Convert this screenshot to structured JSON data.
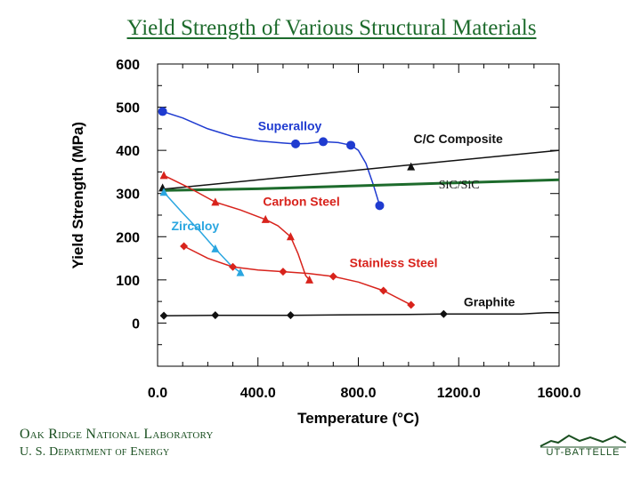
{
  "slide": {
    "title": "Yield Strength of Various Structural Materials",
    "org_line1": "Oak Ridge National Laboratory",
    "org_line2": "U. S. Department of Energy",
    "logo_text": "UT-BATTELLE"
  },
  "colors": {
    "title": "#1d6b2c",
    "superalloy": "#1f3bd0",
    "carbon_steel": "#d8231c",
    "stainless_steel": "#d8231c",
    "zircaloy": "#2aa6e0",
    "cc_composite": "#111111",
    "sic_sic": "#1d6b2c",
    "graphite": "#111111"
  },
  "chart_data": {
    "type": "line",
    "title": "",
    "xlabel": "Temperature (°C)",
    "ylabel": "Yield Strength (MPa)",
    "xlim": [
      0,
      1600
    ],
    "ylim": [
      -100,
      600
    ],
    "xticks": [
      0,
      400,
      800,
      1200,
      1600
    ],
    "xtick_labels": [
      "0.0",
      "400.0",
      "800.0",
      "1200.0",
      "1600.0"
    ],
    "yticks": [
      0,
      100,
      200,
      300,
      400,
      500,
      600
    ],
    "ytick_labels": [
      "0",
      "100",
      "200",
      "300",
      "400",
      "500",
      "600"
    ],
    "series": [
      {
        "name": "Superalloy",
        "marker": "circle",
        "color_key": "superalloy",
        "curve": [
          [
            20,
            490
          ],
          [
            100,
            475
          ],
          [
            200,
            450
          ],
          [
            300,
            432
          ],
          [
            400,
            422
          ],
          [
            500,
            417
          ],
          [
            550,
            415
          ],
          [
            600,
            416
          ],
          [
            660,
            420
          ],
          [
            720,
            418
          ],
          [
            770,
            412
          ],
          [
            800,
            400
          ],
          [
            830,
            370
          ],
          [
            860,
            320
          ],
          [
            885,
            272
          ]
        ],
        "points": [
          [
            20,
            490
          ],
          [
            550,
            415
          ],
          [
            660,
            420
          ],
          [
            770,
            412
          ],
          [
            885,
            272
          ]
        ]
      },
      {
        "name": "C/C Composite",
        "marker": "triangle",
        "color_key": "cc_composite",
        "curve": [
          [
            20,
            310
          ],
          [
            1600,
            400
          ]
        ],
        "points": [
          [
            20,
            313
          ],
          [
            1010,
            362
          ]
        ]
      },
      {
        "name": "SiC/SiC",
        "marker": "none",
        "color_key": "sic_sic",
        "curve": [
          [
            20,
            307
          ],
          [
            400,
            311
          ],
          [
            800,
            318
          ],
          [
            1200,
            325
          ],
          [
            1600,
            332
          ]
        ],
        "points": []
      },
      {
        "name": "Carbon Steel",
        "marker": "triangle",
        "color_key": "carbon_steel",
        "curve": [
          [
            25,
            342
          ],
          [
            120,
            315
          ],
          [
            230,
            280
          ],
          [
            330,
            262
          ],
          [
            430,
            240
          ],
          [
            480,
            225
          ],
          [
            530,
            200
          ],
          [
            560,
            160
          ],
          [
            590,
            110
          ],
          [
            605,
            100
          ]
        ],
        "points": [
          [
            25,
            342
          ],
          [
            230,
            280
          ],
          [
            430,
            240
          ],
          [
            530,
            200
          ],
          [
            605,
            100
          ]
        ]
      },
      {
        "name": "Zircaloy",
        "marker": "triangle",
        "color_key": "zircaloy",
        "curve": [
          [
            25,
            303
          ],
          [
            100,
            255
          ],
          [
            170,
            212
          ],
          [
            230,
            172
          ],
          [
            290,
            135
          ],
          [
            330,
            117
          ]
        ],
        "points": [
          [
            25,
            303
          ],
          [
            230,
            172
          ],
          [
            330,
            117
          ]
        ]
      },
      {
        "name": "Stainless Steel",
        "marker": "diamond",
        "color_key": "stainless_steel",
        "curve": [
          [
            105,
            178
          ],
          [
            200,
            150
          ],
          [
            300,
            130
          ],
          [
            400,
            123
          ],
          [
            500,
            119
          ],
          [
            600,
            115
          ],
          [
            700,
            108
          ],
          [
            800,
            95
          ],
          [
            900,
            75
          ],
          [
            1000,
            45
          ],
          [
            1010,
            42
          ]
        ],
        "points": [
          [
            105,
            178
          ],
          [
            300,
            130
          ],
          [
            500,
            119
          ],
          [
            700,
            108
          ],
          [
            900,
            75
          ],
          [
            1010,
            42
          ]
        ]
      },
      {
        "name": "Graphite",
        "marker": "diamond",
        "color_key": "graphite",
        "curve": [
          [
            25,
            17
          ],
          [
            230,
            18
          ],
          [
            530,
            18
          ],
          [
            1000,
            20
          ],
          [
            1140,
            21
          ],
          [
            1450,
            21
          ],
          [
            1550,
            24
          ],
          [
            1600,
            24
          ]
        ],
        "points": [
          [
            25,
            17
          ],
          [
            230,
            18
          ],
          [
            530,
            18
          ],
          [
            1140,
            21
          ]
        ]
      }
    ],
    "annotations": [
      {
        "text": "Superalloy",
        "x": 400,
        "y": 447,
        "color_key": "superalloy"
      },
      {
        "text": "C/C Composite",
        "x": 1020,
        "y": 417,
        "color_key": "cc_composite"
      },
      {
        "text": "SiC/SiC",
        "x": 1120,
        "y": 312,
        "color_key": "cc_composite",
        "serif": true
      },
      {
        "text": "Carbon Steel",
        "x": 420,
        "y": 272,
        "color_key": "carbon_steel"
      },
      {
        "text": "Zircaloy",
        "x": 55,
        "y": 215,
        "color_key": "zircaloy"
      },
      {
        "text": "Stainless Steel",
        "x": 765,
        "y": 130,
        "color_key": "stainless_steel"
      },
      {
        "text": "Graphite",
        "x": 1220,
        "y": 39,
        "color_key": "cc_composite"
      }
    ],
    "grid": false,
    "legend": "none"
  }
}
